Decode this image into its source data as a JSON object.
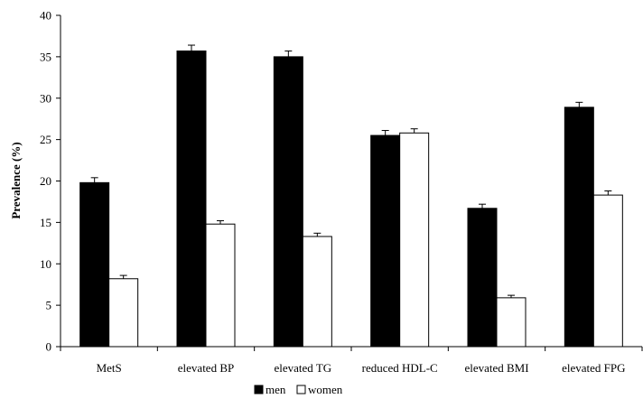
{
  "chart_data": {
    "type": "bar",
    "categories": [
      "MetS",
      "elevated BP",
      "elevated TG",
      "reduced HDL-C",
      "elevated BMI",
      "elevated FPG"
    ],
    "series": [
      {
        "name": "men",
        "color": "#000000",
        "values": [
          19.8,
          35.7,
          35.0,
          25.5,
          16.7,
          28.9
        ],
        "errors": [
          0.6,
          0.7,
          0.7,
          0.6,
          0.5,
          0.6
        ]
      },
      {
        "name": "women",
        "color": "#ffffff",
        "values": [
          8.2,
          14.8,
          13.3,
          25.8,
          5.9,
          18.3
        ],
        "errors": [
          0.4,
          0.4,
          0.4,
          0.5,
          0.3,
          0.5
        ]
      }
    ],
    "title": "",
    "xlabel": "",
    "ylabel": "Prevalence (%)",
    "ylim": [
      0,
      40
    ],
    "yticks": [
      "0",
      "5",
      "10",
      "15",
      "20",
      "25",
      "30",
      "35",
      "40"
    ],
    "grid": false,
    "legend_position": "bottom-center"
  }
}
